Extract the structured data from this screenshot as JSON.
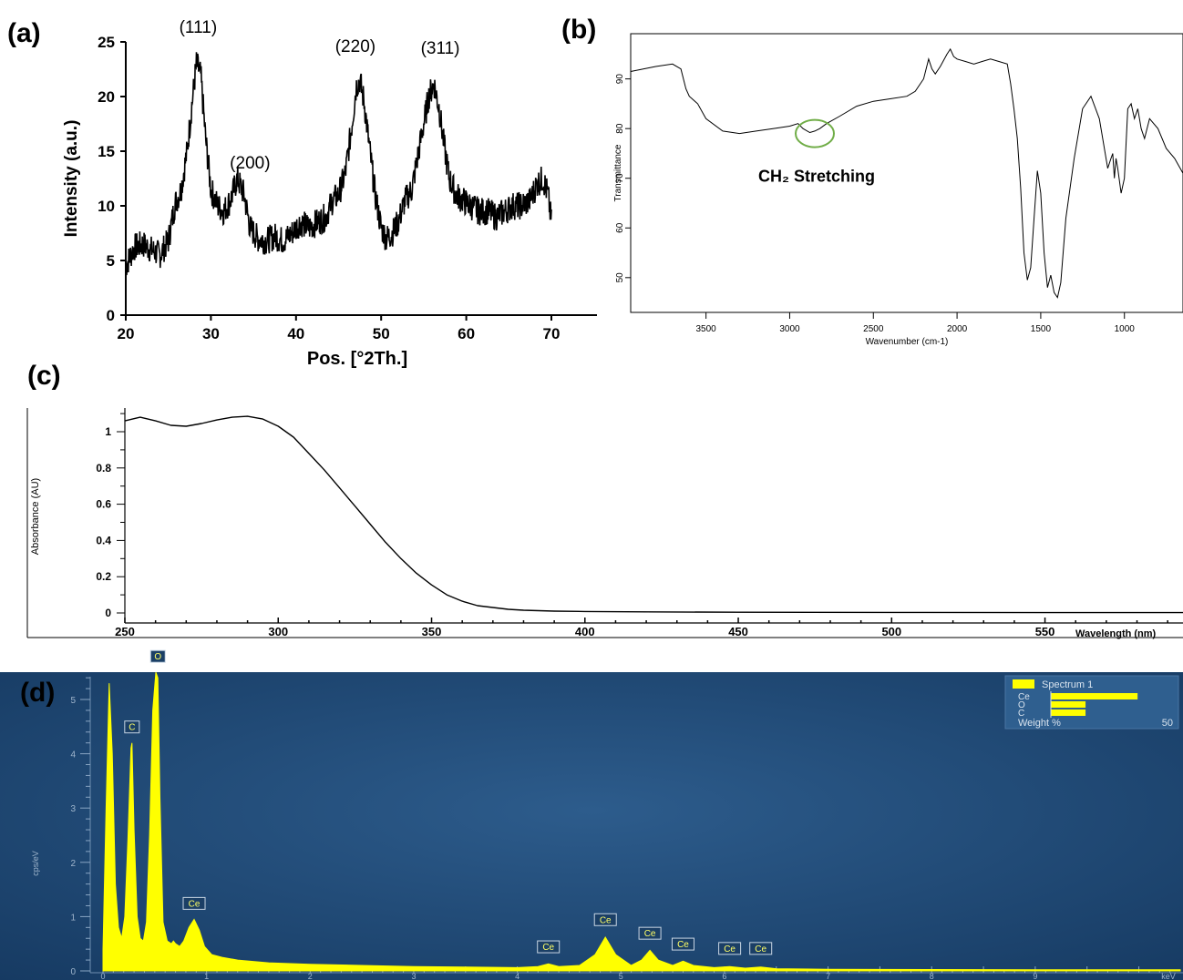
{
  "chart_data": [
    {
      "panel": "(a)",
      "type": "line",
      "xlabel": "Pos. [°2Th.]",
      "ylabel": "Intensity (a.u.)",
      "xlim": [
        20,
        70
      ],
      "ylim": [
        0,
        25
      ],
      "x_ticks": [
        20,
        30,
        40,
        50,
        60,
        70
      ],
      "y_ticks": [
        0,
        5,
        10,
        15,
        20,
        25
      ],
      "peaks": [
        {
          "label": "(111)",
          "x": 28.5,
          "y": 23.5
        },
        {
          "label": "(200)",
          "x": 33.1,
          "y": 12.6
        },
        {
          "label": "(220)",
          "x": 47.4,
          "y": 21.6
        },
        {
          "label": "(311)",
          "x": 56.3,
          "y": 21.4
        }
      ],
      "series": [
        {
          "x": [
            20,
            21,
            22,
            23,
            24,
            25,
            25.8,
            26.5,
            27.2,
            27.8,
            28.3,
            28.8,
            29.4,
            30,
            30.8,
            31.5,
            32.3,
            33.1,
            33.9,
            34.6,
            35.5,
            36.5,
            37.5,
            38.5,
            39.5,
            40.5,
            41.5,
            42.5,
            43.5,
            44.3,
            45,
            45.8,
            46.5,
            47.1,
            47.5,
            48,
            48.6,
            49.3,
            50,
            50.6,
            51.3,
            52,
            52.8,
            53.6,
            54.3,
            55,
            55.6,
            56.2,
            56.8,
            57.4,
            58,
            58.8,
            59.6,
            60.5,
            61.5,
            62.5,
            63.5,
            64.5,
            65.5,
            66.5,
            67.5,
            68.3,
            69,
            69.6,
            70
          ],
          "y": [
            4.5,
            6.2,
            6.5,
            6.0,
            5.5,
            6.8,
            10.2,
            11.5,
            15.0,
            19.5,
            23.0,
            22.0,
            16.0,
            11.5,
            10.0,
            9.5,
            10.5,
            12.5,
            11.0,
            8.0,
            7.0,
            6.8,
            7.2,
            6.8,
            7.5,
            8.5,
            8.0,
            8.5,
            9.0,
            10.5,
            11.0,
            13.0,
            17.0,
            21.0,
            21.5,
            19.5,
            15.5,
            11.0,
            8.0,
            7.0,
            7.5,
            8.5,
            10.5,
            11.5,
            14.5,
            17.5,
            20.0,
            21.2,
            19.0,
            15.5,
            12.5,
            11.0,
            10.5,
            10.0,
            9.5,
            9.5,
            9.0,
            9.5,
            10.0,
            10.0,
            10.5,
            12.0,
            12.5,
            11.0,
            8.5
          ]
        }
      ]
    },
    {
      "panel": "(b)",
      "type": "line",
      "xlabel": "Wavenumber (cm-1)",
      "ylabel": "Transmittance",
      "xlim": [
        3950,
        650
      ],
      "ylim": [
        43,
        98
      ],
      "x_ticks": [
        3500,
        3000,
        2500,
        2000,
        1500,
        1000
      ],
      "y_ticks": [
        50,
        60,
        70,
        80,
        90
      ],
      "annotations": [
        {
          "text": "CH₂ Stretching",
          "x": 2850,
          "y": 79
        }
      ],
      "series": [
        {
          "x": [
            3950,
            3800,
            3700,
            3650,
            3620,
            3600,
            3550,
            3500,
            3400,
            3300,
            3200,
            3100,
            3000,
            2950,
            2920,
            2880,
            2850,
            2820,
            2780,
            2700,
            2600,
            2500,
            2400,
            2300,
            2250,
            2200,
            2170,
            2150,
            2130,
            2100,
            2060,
            2040,
            2020,
            2000,
            1950,
            1900,
            1850,
            1800,
            1750,
            1700,
            1680,
            1660,
            1640,
            1620,
            1600,
            1580,
            1560,
            1540,
            1520,
            1500,
            1480,
            1460,
            1440,
            1420,
            1400,
            1380,
            1350,
            1300,
            1250,
            1200,
            1150,
            1100,
            1080,
            1070,
            1060,
            1050,
            1040,
            1020,
            1000,
            980,
            960,
            940,
            920,
            900,
            880,
            850,
            800,
            750,
            700,
            650
          ],
          "y": [
            91.5,
            92.5,
            93,
            92,
            88,
            86.5,
            85,
            82,
            79.5,
            79,
            79.5,
            80,
            80.5,
            81,
            80,
            79.2,
            79.5,
            80,
            81,
            82.5,
            84.5,
            85.5,
            86,
            86.5,
            87.5,
            90,
            94,
            92,
            91,
            92.5,
            95,
            96,
            94.5,
            94,
            93.5,
            93,
            93.5,
            94,
            93.5,
            93,
            89,
            84,
            78,
            68,
            55,
            49.5,
            52,
            62,
            71.5,
            67,
            55,
            48,
            50.5,
            47,
            46,
            49,
            62,
            74,
            84,
            86.5,
            82,
            72,
            74,
            75,
            70,
            74,
            72,
            67,
            70,
            84,
            85,
            82,
            84,
            80,
            78,
            82,
            80,
            76,
            74,
            71
          ]
        }
      ]
    },
    {
      "panel": "(c)",
      "type": "line",
      "xlabel": "Wavelength (nm)",
      "ylabel": "Absorbance (AU)",
      "xlim": [
        250,
        595
      ],
      "ylim": [
        -0.05,
        1.15
      ],
      "x_ticks": [
        250,
        300,
        350,
        400,
        450,
        500,
        550
      ],
      "y_ticks": [
        0,
        0.2,
        0.4,
        0.6,
        0.8,
        1
      ],
      "series": [
        {
          "x": [
            250,
            255,
            260,
            265,
            270,
            275,
            280,
            285,
            290,
            295,
            300,
            305,
            310,
            315,
            320,
            325,
            330,
            335,
            340,
            345,
            350,
            355,
            360,
            365,
            370,
            375,
            380,
            390,
            400,
            420,
            450,
            500,
            550,
            595
          ],
          "y": [
            1.06,
            1.08,
            1.06,
            1.035,
            1.03,
            1.045,
            1.065,
            1.08,
            1.085,
            1.07,
            1.03,
            0.97,
            0.88,
            0.79,
            0.69,
            0.59,
            0.49,
            0.39,
            0.3,
            0.22,
            0.155,
            0.1,
            0.065,
            0.04,
            0.03,
            0.02,
            0.015,
            0.01,
            0.008,
            0.006,
            0.004,
            0.003,
            0.002,
            0.002
          ]
        }
      ]
    },
    {
      "panel": "(d)",
      "type": "area",
      "xlabel": "keV",
      "ylabel": "cps/eV",
      "xlim": [
        0,
        10.4
      ],
      "ylim": [
        0,
        5.5
      ],
      "x_ticks": [
        0,
        1,
        2,
        3,
        4,
        5,
        6,
        7,
        8,
        9
      ],
      "y_ticks": [
        0,
        1,
        2,
        3,
        4,
        5
      ],
      "peak_labels": [
        {
          "label": "C",
          "x": 0.28,
          "y": 4.2
        },
        {
          "label": "O",
          "x": 0.53,
          "y": 5.5
        },
        {
          "label": "Ce",
          "x": 0.88,
          "y": 0.95
        },
        {
          "label": "Ce",
          "x": 4.3,
          "y": 0.15
        },
        {
          "label": "Ce",
          "x": 4.85,
          "y": 0.65
        },
        {
          "label": "Ce",
          "x": 5.28,
          "y": 0.4
        },
        {
          "label": "Ce",
          "x": 5.6,
          "y": 0.2
        },
        {
          "label": "Ce",
          "x": 6.05,
          "y": 0.12
        },
        {
          "label": "Ce",
          "x": 6.35,
          "y": 0.12
        }
      ],
      "series": [
        {
          "name": "Spectrum 1",
          "x": [
            0,
            0.03,
            0.06,
            0.09,
            0.12,
            0.15,
            0.18,
            0.21,
            0.24,
            0.27,
            0.28,
            0.3,
            0.33,
            0.36,
            0.39,
            0.42,
            0.45,
            0.48,
            0.51,
            0.53,
            0.55,
            0.58,
            0.62,
            0.66,
            0.68,
            0.7,
            0.74,
            0.78,
            0.83,
            0.88,
            0.93,
            0.98,
            1.05,
            1.15,
            1.3,
            1.6,
            2.0,
            2.5,
            3.0,
            3.5,
            4.0,
            4.2,
            4.3,
            4.4,
            4.6,
            4.75,
            4.85,
            4.95,
            5.1,
            5.2,
            5.28,
            5.36,
            5.5,
            5.6,
            5.7,
            5.9,
            6.05,
            6.2,
            6.35,
            6.5,
            7,
            8,
            9,
            10,
            10.4
          ],
          "y": [
            0.4,
            3.0,
            5.3,
            4.0,
            1.6,
            0.8,
            0.6,
            1.0,
            2.4,
            4.1,
            4.2,
            2.6,
            1.0,
            0.6,
            0.55,
            0.9,
            2.5,
            4.8,
            5.5,
            5.4,
            3.2,
            0.9,
            0.55,
            0.5,
            0.55,
            0.5,
            0.45,
            0.55,
            0.8,
            0.95,
            0.75,
            0.45,
            0.3,
            0.25,
            0.2,
            0.15,
            0.12,
            0.1,
            0.08,
            0.07,
            0.06,
            0.08,
            0.13,
            0.08,
            0.1,
            0.3,
            0.62,
            0.3,
            0.1,
            0.2,
            0.38,
            0.2,
            0.1,
            0.18,
            0.1,
            0.06,
            0.08,
            0.05,
            0.07,
            0.04,
            0.03,
            0.025,
            0.02,
            0.02,
            0.02
          ]
        }
      ],
      "legend": {
        "title": "Spectrum 1",
        "items": [
          {
            "label": "Ce",
            "value": 65
          },
          {
            "label": "O",
            "value": 26
          },
          {
            "label": "C",
            "value": 26
          }
        ],
        "footer_label": "Weight %",
        "footer_value": "50",
        "placement": "top-right"
      }
    }
  ],
  "colors": {
    "line": "#000000",
    "eds_bg": "#1f4a78",
    "eds_fill": "#ffff00",
    "circle": "#70ad47"
  }
}
